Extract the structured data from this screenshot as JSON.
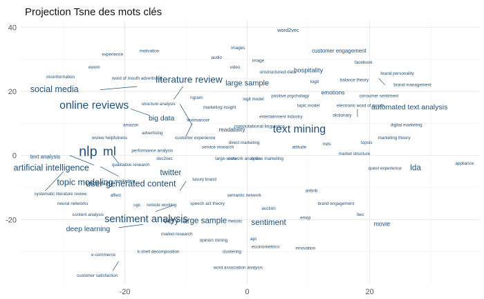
{
  "chart_data": {
    "type": "scatter",
    "title": "Projection Tsne des mots clés",
    "xlabel": "",
    "ylabel": "",
    "xlim": [
      -37,
      38
    ],
    "ylim": [
      -40,
      42
    ],
    "xticks": [
      -20,
      0,
      20
    ],
    "yticks": [
      40,
      20,
      0,
      -20
    ],
    "grid": true,
    "colors": {
      "text": "#1f4e79",
      "grid": "#e3e3e3",
      "tick": "#555555"
    },
    "points": [
      {
        "label": "word2vec",
        "x": 6.7,
        "y": 39.0,
        "size": 7
      },
      {
        "label": "images",
        "x": -1.5,
        "y": 33.5,
        "size": 6
      },
      {
        "label": "motivation",
        "x": -16.0,
        "y": 32.5,
        "size": 6
      },
      {
        "label": "customer engagement",
        "x": 15.0,
        "y": 32.5,
        "size": 7.5
      },
      {
        "label": "experience",
        "x": -22.0,
        "y": 31.5,
        "size": 6
      },
      {
        "label": "audio",
        "x": -5.0,
        "y": 30.5,
        "size": 6
      },
      {
        "label": "image",
        "x": 1.8,
        "y": 29.5,
        "size": 6
      },
      {
        "label": "facebook",
        "x": 19.0,
        "y": 29.0,
        "size": 6
      },
      {
        "label": "ewom",
        "x": -25.0,
        "y": 27.5,
        "size": 6
      },
      {
        "label": "video",
        "x": -2.0,
        "y": 27.5,
        "size": 6
      },
      {
        "label": "hospitality",
        "x": 10.0,
        "y": 26.5,
        "size": 9
      },
      {
        "label": "unstructured data",
        "x": 5.0,
        "y": 26.0,
        "size": 6.5
      },
      {
        "label": "brand personality",
        "x": 24.5,
        "y": 25.5,
        "size": 6
      },
      {
        "label": "misinformation",
        "x": -30.5,
        "y": 24.5,
        "size": 6
      },
      {
        "label": "word of mouth advertising",
        "x": -18.0,
        "y": 24.0,
        "size": 6
      },
      {
        "label": "literature review",
        "x": -9.5,
        "y": 23.5,
        "size": 13
      },
      {
        "label": "logit",
        "x": 11.0,
        "y": 23.0,
        "size": 6.5
      },
      {
        "label": "balance theory",
        "x": 17.5,
        "y": 23.5,
        "size": 6
      },
      {
        "label": "large sample",
        "x": 0.0,
        "y": 22.5,
        "size": 10.5
      },
      {
        "label": "brand management",
        "x": 27.0,
        "y": 22.0,
        "size": 6
      },
      {
        "label": "social media",
        "x": -31.5,
        "y": 20.5,
        "size": 12
      },
      {
        "label": "emotions",
        "x": 14.0,
        "y": 19.5,
        "size": 8
      },
      {
        "label": "positive psychology",
        "x": 7.0,
        "y": 18.5,
        "size": 6
      },
      {
        "label": "consumer sentiment",
        "x": 21.5,
        "y": 18.5,
        "size": 6
      },
      {
        "label": "ngram",
        "x": -8.3,
        "y": 18.0,
        "size": 6
      },
      {
        "label": "logit model",
        "x": 1.0,
        "y": 17.5,
        "size": 6
      },
      {
        "label": "online reviews",
        "x": -25.0,
        "y": 15.5,
        "size": 15
      },
      {
        "label": "structure analysis",
        "x": -14.5,
        "y": 16.0,
        "size": 6
      },
      {
        "label": "automated text analysis",
        "x": 26.5,
        "y": 15.0,
        "size": 10
      },
      {
        "label": "topic model",
        "x": 10.0,
        "y": 15.5,
        "size": 6
      },
      {
        "label": "electronic word of mouth",
        "x": 18.5,
        "y": 15.5,
        "size": 6
      },
      {
        "label": "marketing insight",
        "x": -4.5,
        "y": 15.0,
        "size": 6
      },
      {
        "label": "dictionary",
        "x": 15.5,
        "y": 12.5,
        "size": 6
      },
      {
        "label": "big data",
        "x": -14.0,
        "y": 11.5,
        "size": 10
      },
      {
        "label": "entertainment industry",
        "x": 5.5,
        "y": 12.0,
        "size": 6
      },
      {
        "label": "leximancer",
        "x": -8.0,
        "y": 11.0,
        "size": 6.5
      },
      {
        "label": "amazon",
        "x": -19.0,
        "y": 9.5,
        "size": 6
      },
      {
        "label": "computational linguistics",
        "x": 2.0,
        "y": 9.0,
        "size": 6.5
      },
      {
        "label": "text mining",
        "x": 8.5,
        "y": 8.0,
        "size": 15
      },
      {
        "label": "digital marketing",
        "x": 26.0,
        "y": 9.5,
        "size": 6
      },
      {
        "label": "readability",
        "x": -2.5,
        "y": 8.0,
        "size": 8
      },
      {
        "label": "advertising",
        "x": -15.5,
        "y": 7.0,
        "size": 6
      },
      {
        "label": "customer experience",
        "x": -8.5,
        "y": 5.5,
        "size": 6
      },
      {
        "label": "review helpfulness",
        "x": -22.5,
        "y": 5.5,
        "size": 6
      },
      {
        "label": "marketing theory",
        "x": 24.0,
        "y": 5.5,
        "size": 6
      },
      {
        "label": "direct marketing",
        "x": -0.5,
        "y": 4.0,
        "size": 6
      },
      {
        "label": "mds",
        "x": 13.0,
        "y": 3.5,
        "size": 6
      },
      {
        "label": "topsis",
        "x": 19.5,
        "y": 4.0,
        "size": 6
      },
      {
        "label": "attitude",
        "x": 8.5,
        "y": 2.5,
        "size": 6
      },
      {
        "label": "service research",
        "x": -4.8,
        "y": 2.5,
        "size": 6
      },
      {
        "label": "nlp",
        "x": -26.0,
        "y": 1.0,
        "size": 19
      },
      {
        "label": "ml",
        "x": -22.5,
        "y": 1.0,
        "size": 17
      },
      {
        "label": "performance analysis",
        "x": -15.5,
        "y": 1.5,
        "size": 6
      },
      {
        "label": "market structure",
        "x": 17.5,
        "y": 0.5,
        "size": 6
      },
      {
        "label": "text analysis",
        "x": -33.0,
        "y": -0.5,
        "size": 7.5
      },
      {
        "label": "doc2vec",
        "x": -13.5,
        "y": -1.0,
        "size": 6
      },
      {
        "label": "large-scale",
        "x": -3.5,
        "y": -1.0,
        "size": 6
      },
      {
        "label": "network analysis",
        "x": -0.5,
        "y": -1.0,
        "size": 6
      },
      {
        "label": "online marketing",
        "x": 3.3,
        "y": -1.0,
        "size": 6
      },
      {
        "label": "lda",
        "x": 27.5,
        "y": -4.0,
        "size": 11
      },
      {
        "label": "appliance",
        "x": 35.5,
        "y": -2.5,
        "size": 6
      },
      {
        "label": "qualitative research",
        "x": -19.0,
        "y": -3.0,
        "size": 6
      },
      {
        "label": "quest experience",
        "x": 22.5,
        "y": -4.0,
        "size": 6
      },
      {
        "label": "artificial intelligence",
        "x": -32.0,
        "y": -4.0,
        "size": 12
      },
      {
        "label": "twitter",
        "x": -12.5,
        "y": -5.5,
        "size": 11
      },
      {
        "label": "marketing",
        "x": -20.0,
        "y": -8.0,
        "size": 6.5
      },
      {
        "label": "luxury brand",
        "x": -7.0,
        "y": -7.5,
        "size": 6
      },
      {
        "label": "topic modeling",
        "x": -26.5,
        "y": -8.5,
        "size": 12
      },
      {
        "label": "user-generated content",
        "x": -19.0,
        "y": -9.0,
        "size": 12
      },
      {
        "label": "airbnb",
        "x": 10.5,
        "y": -11.0,
        "size": 6
      },
      {
        "label": "systematic literature review",
        "x": -30.5,
        "y": -12.0,
        "size": 6
      },
      {
        "label": "affect",
        "x": -21.5,
        "y": -12.5,
        "size": 6
      },
      {
        "label": "semantic network",
        "x": -0.5,
        "y": -12.5,
        "size": 6
      },
      {
        "label": "neural networks",
        "x": -28.5,
        "y": -15.0,
        "size": 6
      },
      {
        "label": "speech act theory",
        "x": -6.5,
        "y": -15.0,
        "size": 6
      },
      {
        "label": "brand engagement",
        "x": 14.5,
        "y": -15.0,
        "size": 6
      },
      {
        "label": "ugc",
        "x": -18.0,
        "y": -15.5,
        "size": 6
      },
      {
        "label": "remote working",
        "x": -14.0,
        "y": -15.5,
        "size": 6
      },
      {
        "label": "auction",
        "x": 3.5,
        "y": -16.5,
        "size": 6
      },
      {
        "label": "content analysis",
        "x": -26.0,
        "y": -18.5,
        "size": 6
      },
      {
        "label": "llwc",
        "x": 18.5,
        "y": -18.5,
        "size": 6
      },
      {
        "label": "emoji",
        "x": 9.5,
        "y": -19.5,
        "size": 6
      },
      {
        "label": "sentiment analysis",
        "x": -16.5,
        "y": -20.0,
        "size": 14
      },
      {
        "label": "very large sample",
        "x": -8.5,
        "y": -20.5,
        "size": 11
      },
      {
        "label": "rhetoric",
        "x": -2.0,
        "y": -20.5,
        "size": 6
      },
      {
        "label": "sentiment",
        "x": 3.5,
        "y": -21.0,
        "size": 11
      },
      {
        "label": "movie",
        "x": 22.0,
        "y": -21.5,
        "size": 8.5
      },
      {
        "label": "deep learning",
        "x": -26.0,
        "y": -23.0,
        "size": 10
      },
      {
        "label": "market research",
        "x": -11.5,
        "y": -24.5,
        "size": 6
      },
      {
        "label": "opinion mining",
        "x": -5.5,
        "y": -26.5,
        "size": 6
      },
      {
        "label": "api",
        "x": 1.0,
        "y": -26.0,
        "size": 6.5
      },
      {
        "label": "econometrics",
        "x": 3.0,
        "y": -28.5,
        "size": 6.5
      },
      {
        "label": "innovation",
        "x": 9.5,
        "y": -29.0,
        "size": 6
      },
      {
        "label": "k-shell decomposition",
        "x": -14.5,
        "y": -30.0,
        "size": 6
      },
      {
        "label": "clustering",
        "x": -2.5,
        "y": -30.0,
        "size": 6
      },
      {
        "label": "e-commerce",
        "x": -23.5,
        "y": -31.0,
        "size": 6
      },
      {
        "label": "word association analysis",
        "x": -1.5,
        "y": -35.0,
        "size": 6
      },
      {
        "label": "customer satisfaction",
        "x": -24.5,
        "y": -37.5,
        "size": 6
      }
    ]
  }
}
